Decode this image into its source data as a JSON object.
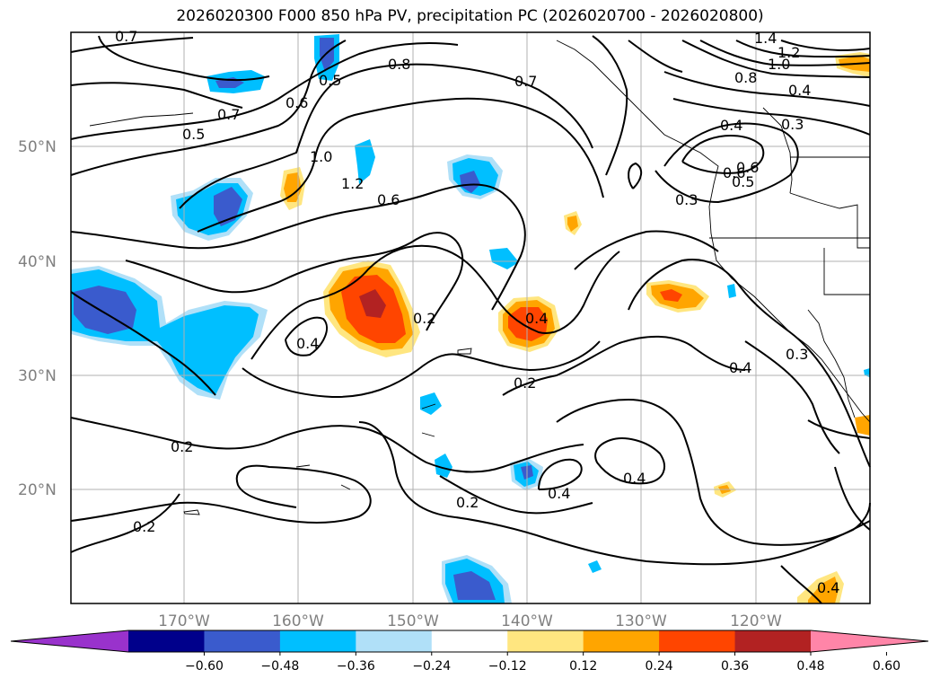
{
  "title": "2026020300 F000 850 hPa PV, precipitation PC (2026020700 - 2026020800)",
  "lat_labels": [
    "50°N",
    "40°N",
    "30°N",
    "20°N"
  ],
  "lon_labels": [
    "170°W",
    "160°W",
    "150°W",
    "140°W",
    "130°W",
    "120°W"
  ],
  "colorbar": {
    "ticks": [
      "−0.60",
      "−0.48",
      "−0.36",
      "−0.24",
      "−0.12",
      "0.12",
      "0.24",
      "0.36",
      "0.48",
      "0.60"
    ],
    "colors": [
      "#9932cc",
      "#00008b",
      "#3a5bcd",
      "#00bfff",
      "#b0e0f8",
      "#ffffff",
      "#ffe680",
      "#ffa500",
      "#ff4500",
      "#b22222",
      "#ff85a8"
    ]
  },
  "contour_labels": [
    "0.7",
    "0.5",
    "0.6",
    "0.7",
    "0.5",
    "0.8",
    "0.7",
    "1.0",
    "1.2",
    "0.6",
    "1.4",
    "1.2",
    "1.0",
    "0.8",
    "0.6",
    "0.4",
    "0.4",
    "0.3",
    "0.6",
    "0.5",
    "0.3",
    "0.4",
    "0.2",
    "0.4",
    "0.2",
    "0.4",
    "0.4",
    "0.4",
    "0.2",
    "0.2",
    "0.2",
    "0.3",
    "0.4"
  ],
  "colors": {
    "contour": "#000000",
    "grid": "#b0b0b0",
    "axis_label": "#808080"
  }
}
